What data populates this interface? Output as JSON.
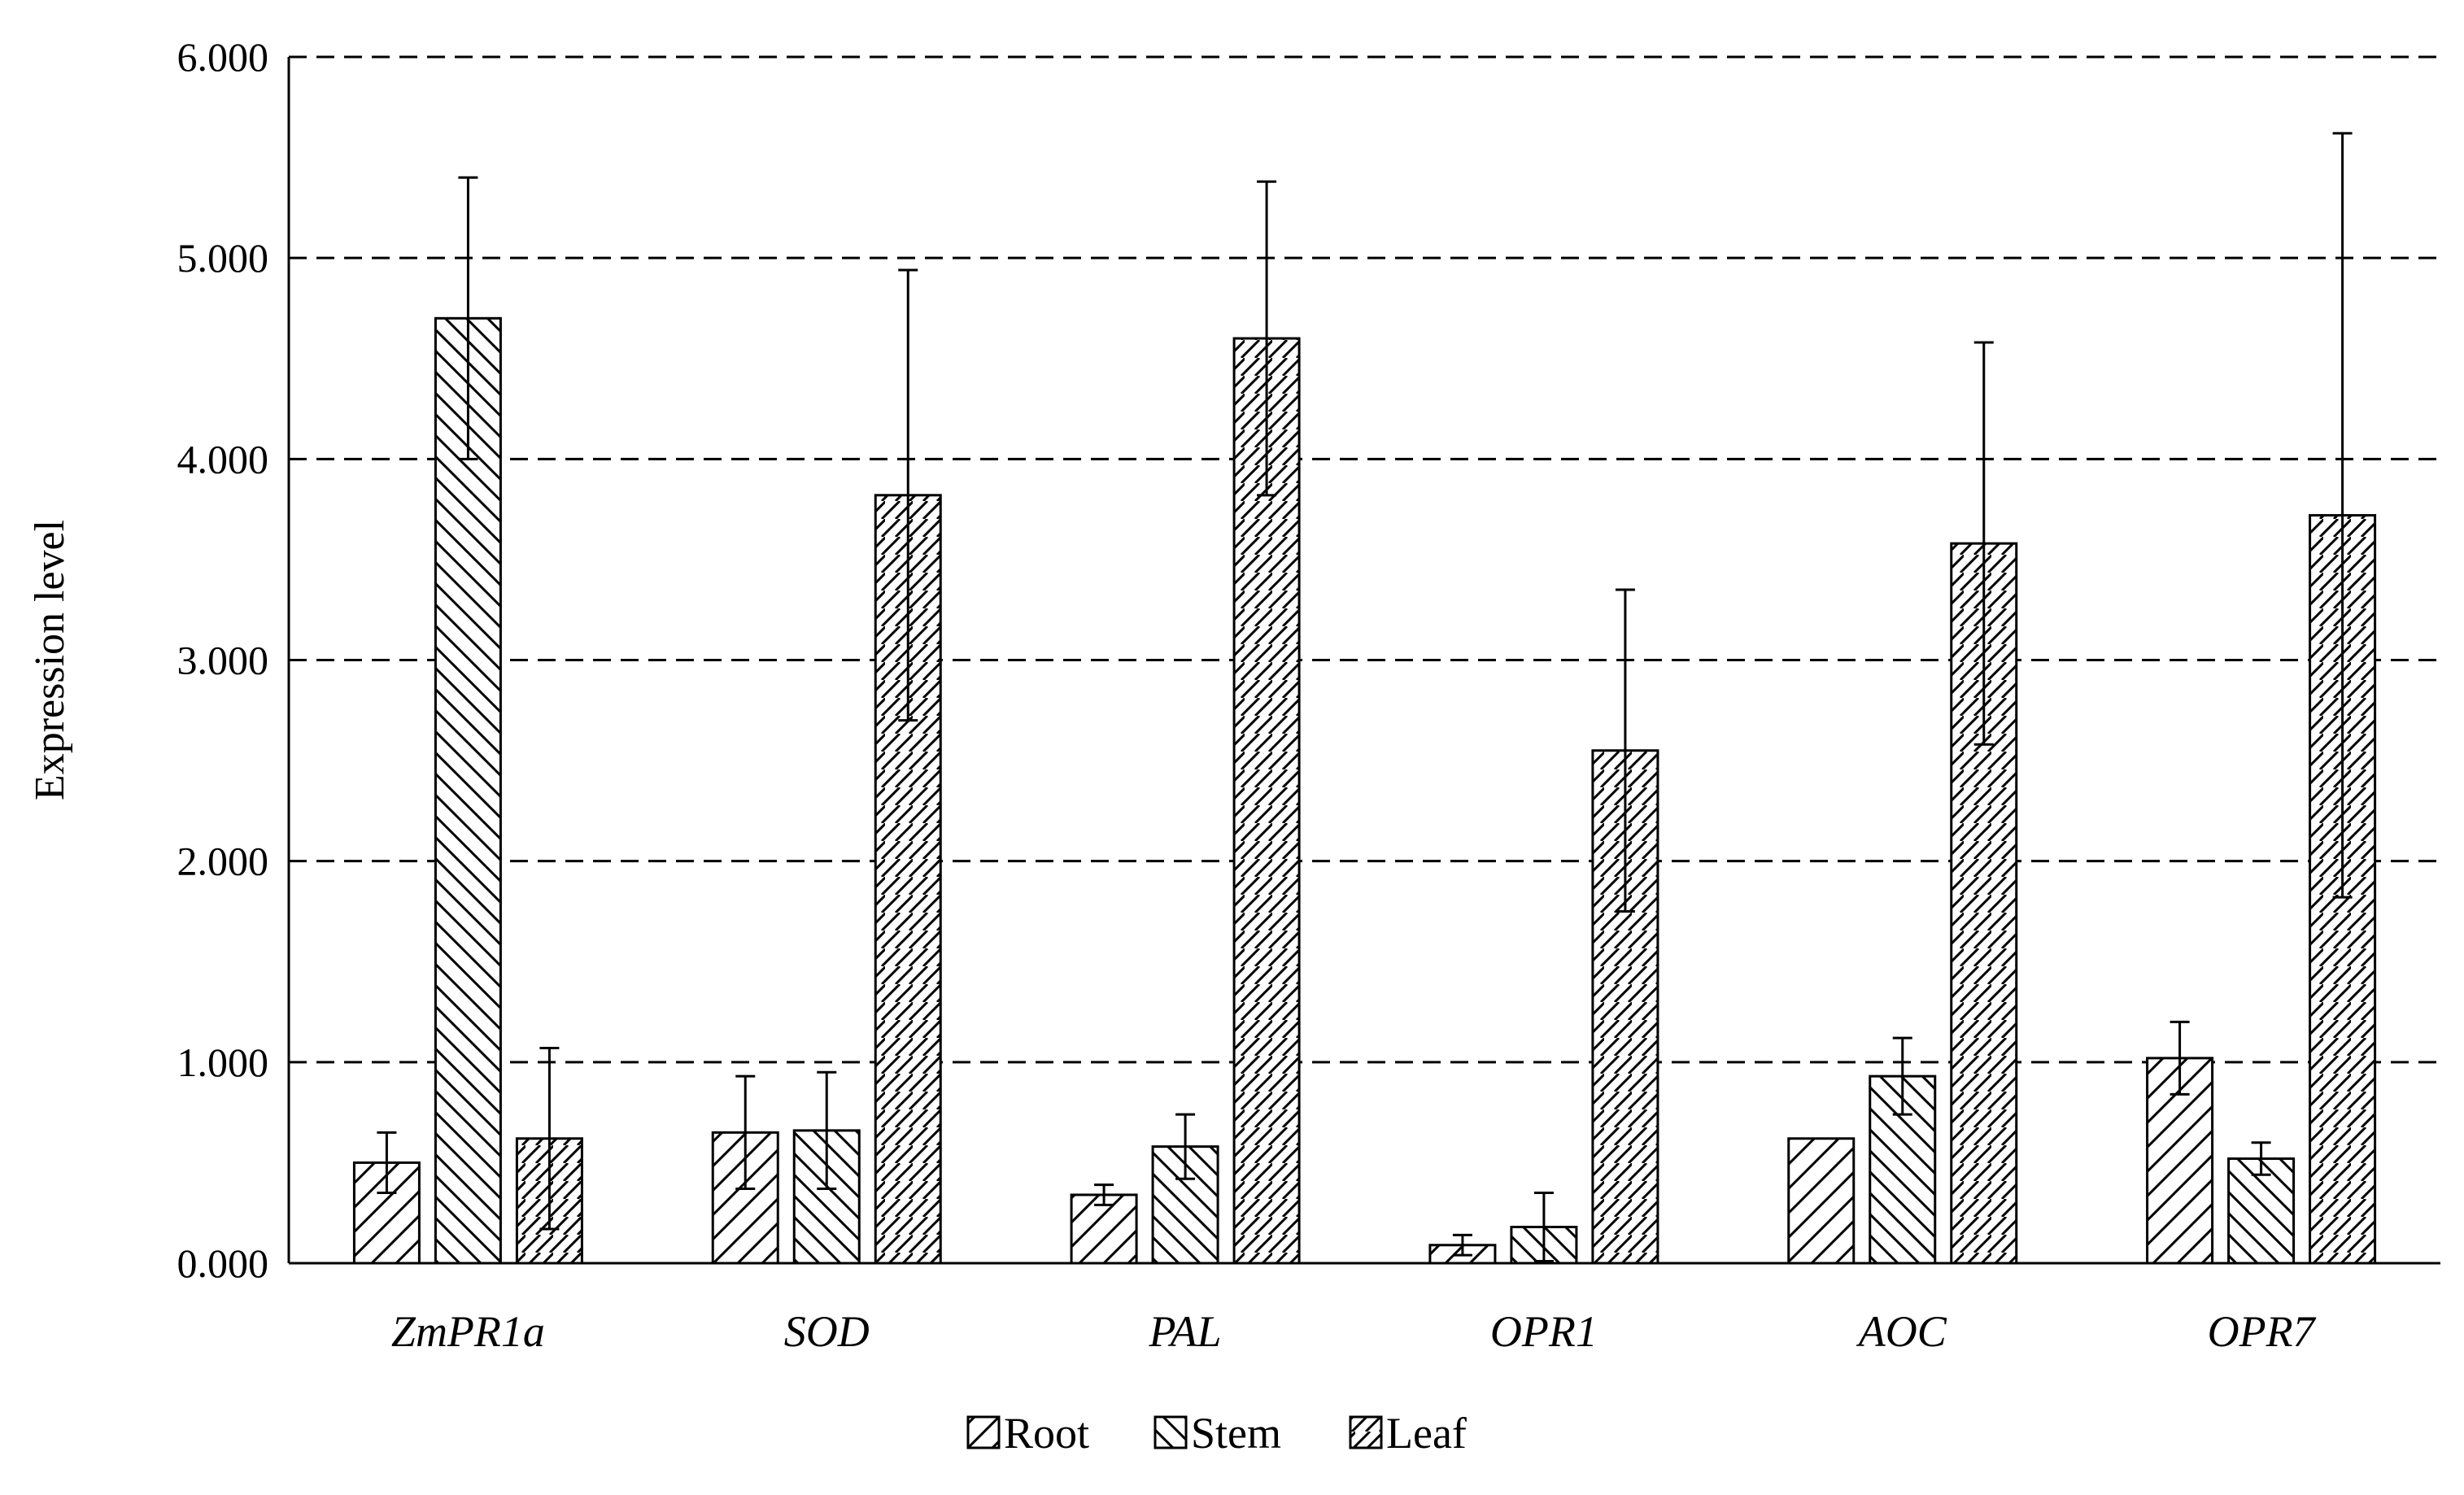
{
  "chart_data": {
    "type": "bar",
    "title": "",
    "xlabel": "",
    "ylabel": "Expression level",
    "ylim": [
      0,
      6
    ],
    "yticks": [
      "0.000",
      "1.000",
      "2.000",
      "3.000",
      "4.000",
      "5.000",
      "6.000"
    ],
    "grid": "horizontal dashed",
    "legend_position": "bottom-center",
    "categories": [
      "ZmPR1a",
      "SOD",
      "PAL",
      "OPR1",
      "AOC",
      "OPR7"
    ],
    "series": [
      {
        "name": "Root",
        "pattern": "hatch-forward",
        "values": [
          0.5,
          0.65,
          0.34,
          0.09,
          0.62,
          1.02
        ],
        "errors": [
          0.15,
          0.28,
          0.05,
          0.05,
          0.0,
          0.18
        ]
      },
      {
        "name": "Stem",
        "pattern": "hatch-backward",
        "values": [
          4.7,
          0.66,
          0.58,
          0.18,
          0.93,
          0.52
        ],
        "errors": [
          0.7,
          0.29,
          0.16,
          0.17,
          0.19,
          0.08
        ]
      },
      {
        "name": "Leaf",
        "pattern": "hatch-dense",
        "values": [
          0.62,
          3.82,
          4.6,
          2.55,
          3.58,
          3.72
        ],
        "errors": [
          0.45,
          1.12,
          0.78,
          0.8,
          1.0,
          1.9
        ]
      }
    ],
    "colors": {
      "bar_stroke": "#000000",
      "grid": "#000000",
      "background": "#ffffff"
    }
  }
}
